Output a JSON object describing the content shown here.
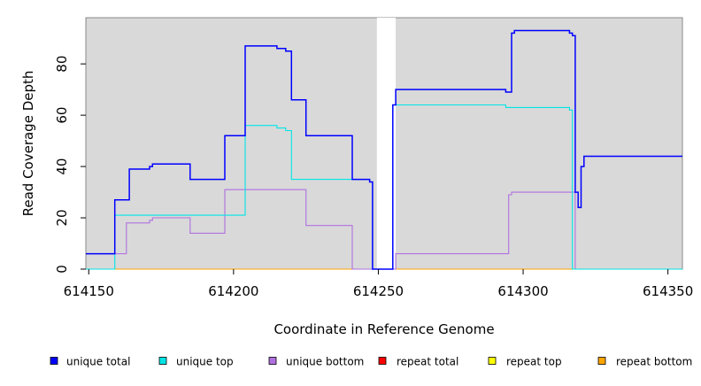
{
  "chart_data": {
    "type": "line",
    "xlabel": "Coordinate in Reference Genome",
    "ylabel": "Read Coverage Depth",
    "xlim": [
      614149,
      614355
    ],
    "ylim": [
      0,
      98
    ],
    "x_ticks": [
      614150,
      614200,
      614250,
      614300,
      614350
    ],
    "y_ticks": [
      0,
      20,
      40,
      60,
      80
    ],
    "x_tick_labels": [
      "614150",
      "614200",
      "614250",
      "614300",
      "614350"
    ],
    "y_tick_labels": [
      "0",
      "20",
      "40",
      "60",
      "80"
    ],
    "background": "#d9d9d9",
    "gap_region": [
      614249.5,
      614256
    ],
    "gap_color": "#ffffff",
    "legend_position": "bottom",
    "series": [
      {
        "name": "unique total",
        "color": "#0000ff",
        "step": true,
        "points": [
          [
            614149,
            6
          ],
          [
            614159,
            6
          ],
          [
            614159,
            27
          ],
          [
            614164,
            27
          ],
          [
            614164,
            39
          ],
          [
            614171,
            39
          ],
          [
            614171,
            40
          ],
          [
            614172,
            40
          ],
          [
            614172,
            41
          ],
          [
            614185,
            41
          ],
          [
            614185,
            35
          ],
          [
            614197,
            35
          ],
          [
            614197,
            52
          ],
          [
            614204,
            52
          ],
          [
            614204,
            87
          ],
          [
            614215,
            87
          ],
          [
            614215,
            86
          ],
          [
            614218,
            86
          ],
          [
            614218,
            85
          ],
          [
            614220,
            85
          ],
          [
            614220,
            66
          ],
          [
            614225,
            66
          ],
          [
            614225,
            52
          ],
          [
            614241,
            52
          ],
          [
            614241,
            35
          ],
          [
            614247,
            35
          ],
          [
            614247,
            34
          ],
          [
            614248,
            34
          ],
          [
            614248,
            0
          ],
          [
            614255,
            0
          ],
          [
            614255,
            64
          ],
          [
            614256,
            64
          ],
          [
            614256,
            70
          ],
          [
            614294,
            70
          ],
          [
            614294,
            69
          ],
          [
            614296,
            69
          ],
          [
            614296,
            92
          ],
          [
            614297,
            92
          ],
          [
            614297,
            93
          ],
          [
            614316,
            93
          ],
          [
            614316,
            92
          ],
          [
            614317,
            92
          ],
          [
            614317,
            91
          ],
          [
            614318,
            91
          ],
          [
            614318,
            30
          ],
          [
            614319,
            30
          ],
          [
            614319,
            24
          ],
          [
            614320,
            24
          ],
          [
            614320,
            40
          ],
          [
            614321,
            40
          ],
          [
            614321,
            44
          ],
          [
            614355,
            44
          ]
        ]
      },
      {
        "name": "unique top",
        "color": "#00e5e5",
        "step": true,
        "points": [
          [
            614149,
            0
          ],
          [
            614159,
            0
          ],
          [
            614159,
            21
          ],
          [
            614204,
            21
          ],
          [
            614204,
            56
          ],
          [
            614215,
            56
          ],
          [
            614215,
            55
          ],
          [
            614218,
            55
          ],
          [
            614218,
            54
          ],
          [
            614220,
            54
          ],
          [
            614220,
            35
          ],
          [
            614247,
            35
          ],
          [
            614247,
            34
          ],
          [
            614248,
            34
          ],
          [
            614248,
            0
          ],
          [
            614255,
            0
          ],
          [
            614255,
            64
          ],
          [
            614294,
            64
          ],
          [
            614294,
            63
          ],
          [
            614316,
            63
          ],
          [
            614316,
            62
          ],
          [
            614317,
            62
          ],
          [
            614317,
            0
          ],
          [
            614355,
            0
          ]
        ]
      },
      {
        "name": "unique bottom",
        "color": "#b070e0",
        "step": true,
        "points": [
          [
            614149,
            6
          ],
          [
            614163,
            6
          ],
          [
            614163,
            18
          ],
          [
            614171,
            18
          ],
          [
            614171,
            19
          ],
          [
            614172,
            19
          ],
          [
            614172,
            20
          ],
          [
            614185,
            20
          ],
          [
            614185,
            14
          ],
          [
            614197,
            14
          ],
          [
            614197,
            31
          ],
          [
            614225,
            31
          ],
          [
            614225,
            17
          ],
          [
            614241,
            17
          ],
          [
            614241,
            0
          ],
          [
            614256,
            0
          ],
          [
            614256,
            6
          ],
          [
            614295,
            6
          ],
          [
            614295,
            29
          ],
          [
            614296,
            29
          ],
          [
            614296,
            30
          ],
          [
            614318,
            30
          ],
          [
            614318,
            0
          ],
          [
            614355,
            0
          ]
        ]
      },
      {
        "name": "repeat total",
        "color": "#ff0000",
        "step": true,
        "points": [
          [
            614149,
            0
          ],
          [
            614355,
            0
          ]
        ]
      },
      {
        "name": "repeat top",
        "color": "#ffff00",
        "step": true,
        "points": [
          [
            614149,
            0
          ],
          [
            614355,
            0
          ]
        ]
      },
      {
        "name": "repeat bottom",
        "color": "#ffa500",
        "step": true,
        "points": [
          [
            614149,
            0
          ],
          [
            614355,
            0
          ]
        ]
      }
    ]
  }
}
